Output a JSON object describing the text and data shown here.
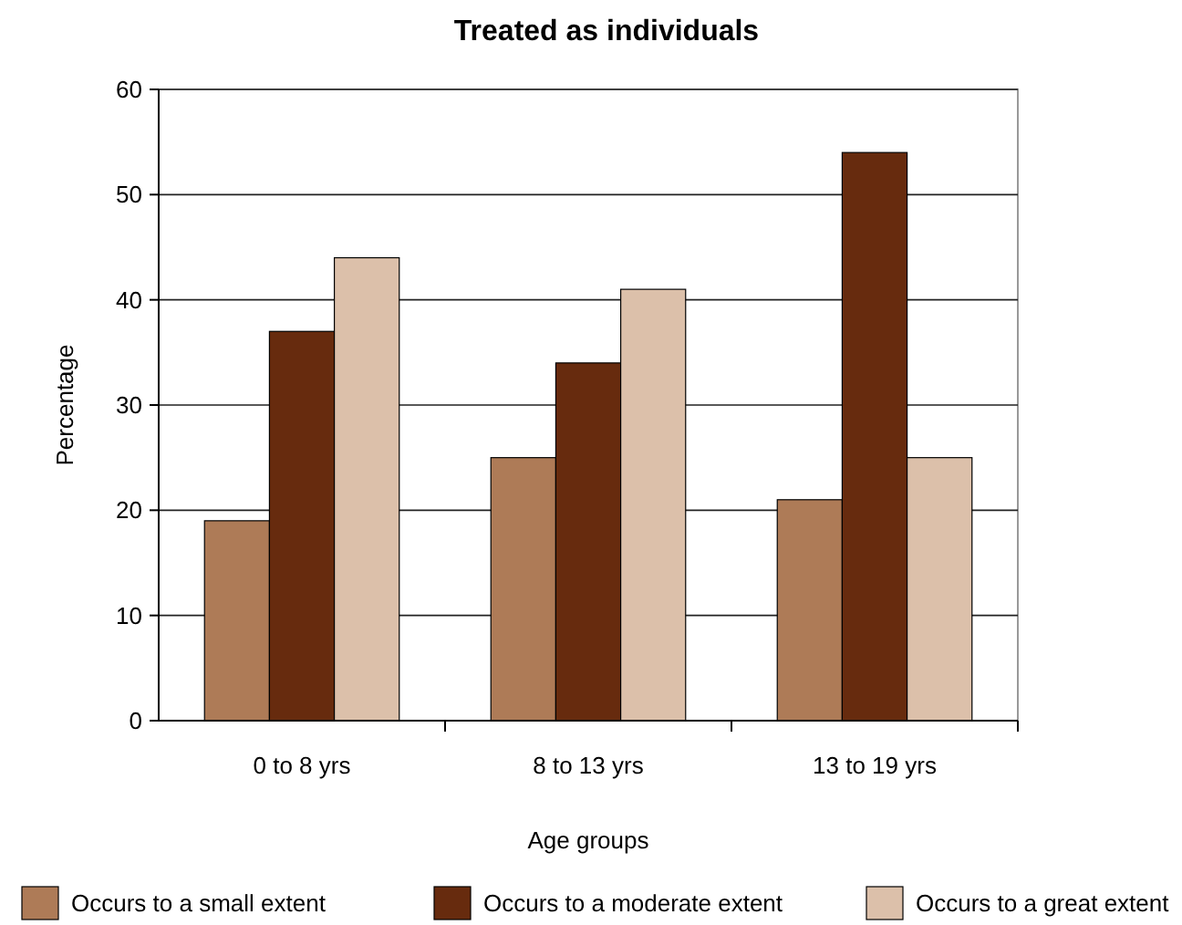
{
  "chart_data": {
    "type": "bar",
    "title": "Treated as individuals",
    "xlabel": "Age groups",
    "ylabel": "Percentage",
    "categories": [
      "0 to 8 yrs",
      "8 to 13 yrs",
      "13 to 19 yrs"
    ],
    "series": [
      {
        "name": "Occurs to a small extent",
        "color": "#ae7b57",
        "values": [
          19,
          25,
          21
        ]
      },
      {
        "name": "Occurs to a moderate extent",
        "color": "#672b0e",
        "values": [
          37,
          34,
          54
        ]
      },
      {
        "name": "Occurs to a great extent",
        "color": "#dcc0aa",
        "values": [
          44,
          41,
          25
        ]
      }
    ],
    "ylim": [
      0,
      60
    ],
    "yticks": [
      0,
      10,
      20,
      30,
      40,
      50,
      60
    ],
    "grid": "y",
    "legend": "bottom"
  }
}
